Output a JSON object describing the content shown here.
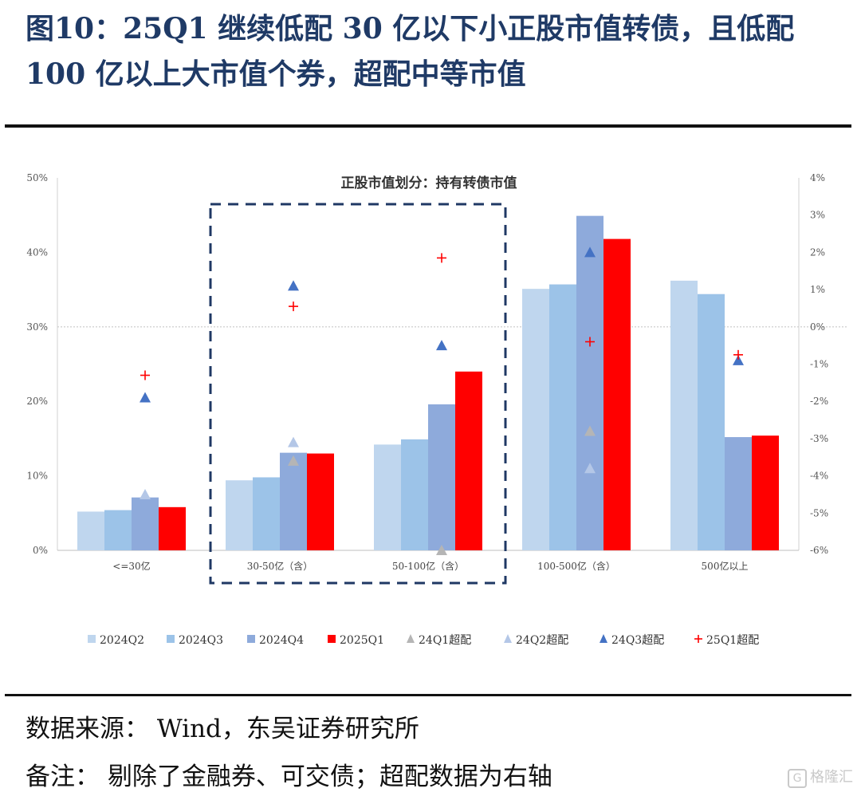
{
  "figure_title": "图10：25Q1 继续低配 30 亿以下小正股市值转债，且低配 100 亿以上大市值个券，超配中等市值",
  "chart_data": {
    "type": "bar",
    "title": "正股市值划分：持有转债市值",
    "categories": [
      "<=30亿",
      "30-50亿（含）",
      "50-100亿（含）",
      "100-500亿（含）",
      "500亿以上"
    ],
    "ylim": [
      0,
      50
    ],
    "y2lim": [
      -6,
      4
    ],
    "y_ticks": [
      "0%",
      "10%",
      "20%",
      "30%",
      "40%",
      "50%"
    ],
    "y2_ticks": [
      "-6%",
      "-5%",
      "-4%",
      "-3%",
      "-2%",
      "-1%",
      "0%",
      "1%",
      "2%",
      "3%",
      "4%"
    ],
    "series": [
      {
        "name": "2024Q2",
        "type": "bar",
        "color": "#bfd6ee",
        "values": [
          5.2,
          9.4,
          14.2,
          35.1,
          36.2
        ]
      },
      {
        "name": "2024Q3",
        "type": "bar",
        "color": "#9cc3e8",
        "values": [
          5.4,
          9.8,
          14.9,
          35.7,
          34.4
        ]
      },
      {
        "name": "2024Q4",
        "type": "bar",
        "color": "#8eaadb",
        "values": [
          7.1,
          13.1,
          19.6,
          44.9,
          15.2
        ]
      },
      {
        "name": "2025Q1",
        "type": "bar",
        "color": "#ff0000",
        "values": [
          5.8,
          13.0,
          24.0,
          41.8,
          15.4
        ]
      },
      {
        "name": "24Q1超配",
        "type": "marker",
        "marker": "triangle",
        "color": "#b5b5b5",
        "axis": "right",
        "values": [
          null,
          -3.6,
          -6.0,
          -2.8,
          null
        ]
      },
      {
        "name": "24Q2超配",
        "type": "marker",
        "marker": "triangle",
        "color": "#b4c7e7",
        "axis": "right",
        "values": [
          -4.5,
          -3.1,
          null,
          -3.8,
          null
        ]
      },
      {
        "name": "24Q3超配",
        "type": "marker",
        "marker": "triangle",
        "color": "#4472c4",
        "axis": "right",
        "values": [
          -1.9,
          1.1,
          -0.5,
          2.0,
          -0.9
        ]
      },
      {
        "name": "25Q1超配",
        "type": "marker",
        "marker": "plus",
        "color": "#ff0000",
        "axis": "right",
        "values": [
          -1.3,
          0.55,
          1.85,
          -0.4,
          -0.75
        ]
      }
    ],
    "reference_line": {
      "axis": "left",
      "value": 30
    },
    "highlight_categories": [
      1,
      2
    ],
    "legend_position": "bottom"
  },
  "footnotes": {
    "source": "数据来源： Wind，东吴证券研究所",
    "note": "备注： 剔除了金融券、可交债；超配数据为右轴"
  },
  "watermark": {
    "icon": "G",
    "text": "格隆汇"
  }
}
